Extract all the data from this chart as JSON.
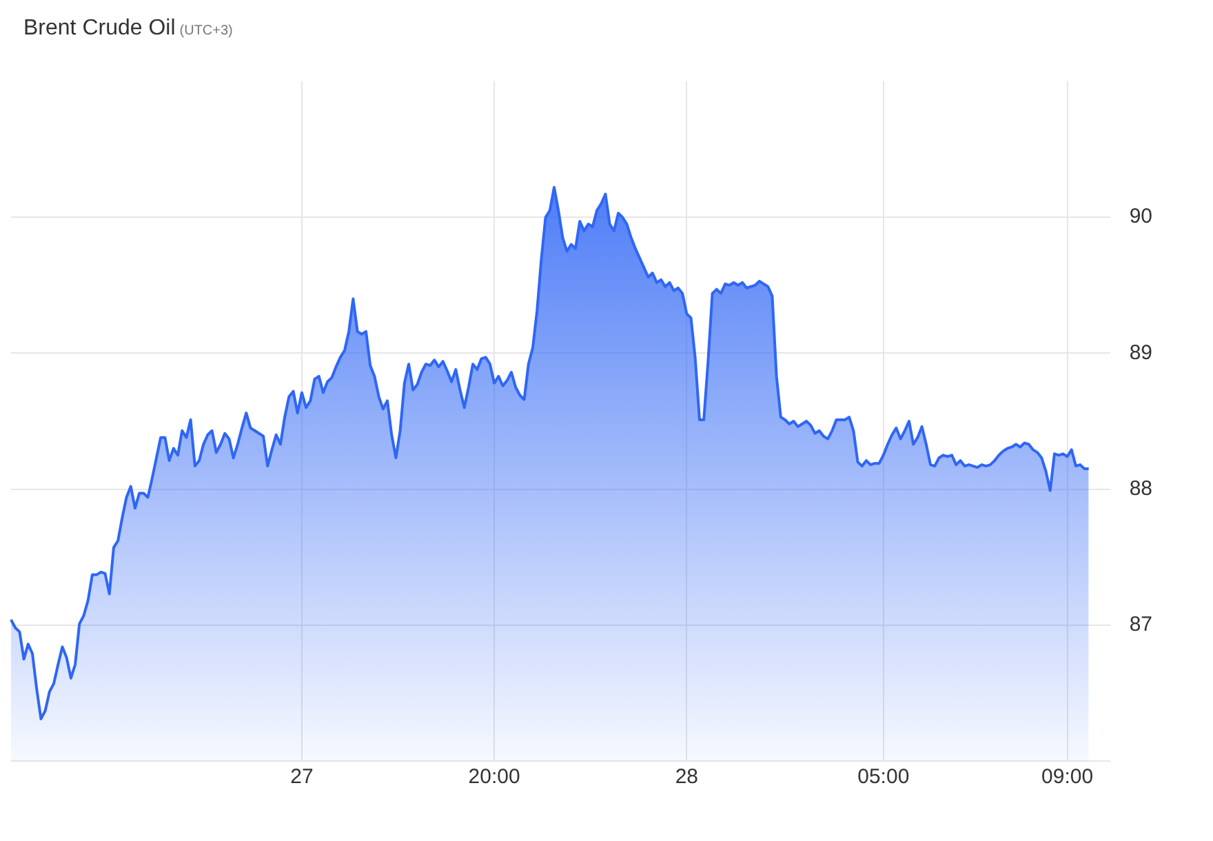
{
  "chart_data": {
    "type": "area",
    "title": "Brent Crude Oil",
    "subtitle": "(UTC+3)",
    "categories": [
      null,
      null,
      null,
      null,
      null,
      null,
      null,
      null,
      null,
      null,
      null,
      null,
      null,
      null,
      null,
      null,
      null,
      null,
      null,
      null,
      null,
      null,
      null,
      null,
      null,
      null,
      null,
      null,
      null,
      null,
      null,
      null,
      null,
      null,
      null,
      null,
      null,
      null,
      null,
      null,
      null,
      null,
      null,
      null,
      null,
      null,
      null,
      null,
      null,
      null,
      null,
      null,
      null,
      null,
      null,
      null,
      null,
      null,
      null,
      null,
      null,
      null,
      null,
      null,
      null,
      null,
      null,
      null,
      "27",
      null,
      null,
      null,
      null,
      null,
      null,
      null,
      null,
      null,
      null,
      null,
      null,
      null,
      null,
      null,
      null,
      null,
      null,
      null,
      null,
      null,
      null,
      null,
      null,
      null,
      null,
      null,
      null,
      null,
      null,
      null,
      null,
      null,
      null,
      null,
      null,
      null,
      null,
      null,
      null,
      null,
      null,
      null,
      null,
      "20:00",
      null,
      null,
      null,
      null,
      null,
      null,
      null,
      null,
      null,
      null,
      null,
      null,
      null,
      null,
      null,
      null,
      null,
      null,
      null,
      null,
      null,
      null,
      null,
      null,
      null,
      null,
      null,
      null,
      null,
      null,
      null,
      null,
      null,
      null,
      null,
      null,
      null,
      null,
      null,
      null,
      null,
      null,
      null,
      null,
      "28",
      null,
      null,
      null,
      null,
      null,
      null,
      null,
      null,
      null,
      null,
      null,
      null,
      null,
      null,
      null,
      null,
      null,
      null,
      null,
      null,
      null,
      null,
      null,
      null,
      null,
      null,
      null,
      null,
      null,
      null,
      null,
      null,
      null,
      null,
      null,
      null,
      null,
      null,
      null,
      null,
      null,
      null,
      null,
      null,
      null,
      "05:00",
      null,
      null,
      null,
      null,
      null,
      null,
      null,
      null,
      null,
      null,
      null,
      null,
      null,
      null,
      null,
      null,
      null,
      null,
      null,
      null,
      null,
      null,
      null,
      null,
      null,
      null,
      null,
      null,
      null,
      null,
      null,
      null,
      null,
      null,
      null,
      null,
      null,
      null,
      null,
      null,
      null,
      null,
      "09:00",
      null,
      null,
      null,
      null,
      null,
      null,
      null,
      null,
      null,
      null
    ],
    "ylim": [
      86,
      91
    ],
    "yticks": [
      87,
      88,
      89,
      90
    ],
    "grid": true,
    "legend": false,
    "marker": "none",
    "line_style": "solid",
    "series": [
      {
        "color": "#2f66f5",
        "values": [
          87.04,
          86.98,
          86.95,
          86.75,
          86.86,
          86.79,
          86.53,
          86.31,
          86.37,
          86.51,
          86.57,
          86.71,
          86.84,
          86.76,
          86.61,
          86.71,
          87.01,
          87.07,
          87.18,
          87.37,
          87.37,
          87.39,
          87.38,
          87.23,
          87.57,
          87.62,
          87.79,
          87.94,
          88.02,
          87.86,
          87.97,
          87.97,
          87.94,
          88.08,
          88.23,
          88.38,
          88.38,
          88.21,
          88.3,
          88.25,
          88.43,
          88.38,
          88.51,
          88.17,
          88.21,
          88.33,
          88.4,
          88.43,
          88.27,
          88.33,
          88.41,
          88.37,
          88.23,
          88.33,
          88.45,
          88.56,
          88.45,
          88.43,
          88.41,
          88.39,
          88.17,
          88.29,
          88.4,
          88.33,
          88.53,
          88.68,
          88.72,
          88.56,
          88.71,
          88.6,
          88.65,
          88.81,
          88.83,
          88.71,
          88.79,
          88.82,
          88.9,
          88.97,
          89.02,
          89.16,
          89.4,
          89.16,
          89.14,
          89.16,
          88.91,
          88.83,
          88.68,
          88.59,
          88.65,
          88.4,
          88.23,
          88.43,
          88.78,
          88.92,
          88.73,
          88.77,
          88.86,
          88.92,
          88.91,
          88.95,
          88.9,
          88.94,
          88.87,
          88.79,
          88.88,
          88.73,
          88.6,
          88.75,
          88.92,
          88.88,
          88.96,
          88.97,
          88.92,
          88.78,
          88.83,
          88.76,
          88.8,
          88.86,
          88.75,
          88.69,
          88.66,
          88.92,
          89.04,
          89.31,
          89.69,
          90.0,
          90.05,
          90.22,
          90.05,
          89.85,
          89.75,
          89.8,
          89.77,
          89.97,
          89.9,
          89.95,
          89.93,
          90.05,
          90.1,
          90.17,
          89.95,
          89.9,
          90.03,
          90.0,
          89.95,
          89.85,
          89.77,
          89.7,
          89.63,
          89.56,
          89.59,
          89.52,
          89.54,
          89.49,
          89.52,
          89.46,
          89.48,
          89.44,
          89.29,
          89.26,
          88.96,
          88.51,
          88.51,
          88.94,
          89.44,
          89.47,
          89.44,
          89.51,
          89.5,
          89.52,
          89.5,
          89.52,
          89.48,
          89.49,
          89.5,
          89.53,
          89.51,
          89.49,
          89.42,
          88.83,
          88.53,
          88.51,
          88.48,
          88.5,
          88.46,
          88.48,
          88.5,
          88.47,
          88.41,
          88.43,
          88.39,
          88.37,
          88.43,
          88.51,
          88.51,
          88.51,
          88.53,
          88.43,
          88.2,
          88.17,
          88.21,
          88.18,
          88.19,
          88.19,
          88.25,
          88.33,
          88.4,
          88.45,
          88.37,
          88.43,
          88.5,
          88.33,
          88.38,
          88.46,
          88.33,
          88.18,
          88.17,
          88.23,
          88.25,
          88.24,
          88.25,
          88.18,
          88.21,
          88.17,
          88.18,
          88.17,
          88.16,
          88.18,
          88.17,
          88.18,
          88.21,
          88.25,
          88.28,
          88.3,
          88.31,
          88.33,
          88.31,
          88.34,
          88.33,
          88.29,
          88.27,
          88.23,
          88.13,
          87.99,
          88.26,
          88.25,
          88.26,
          88.24,
          88.29,
          88.17,
          88.18,
          88.15,
          88.15,
          null,
          null,
          null,
          null,
          null
        ]
      }
    ]
  }
}
